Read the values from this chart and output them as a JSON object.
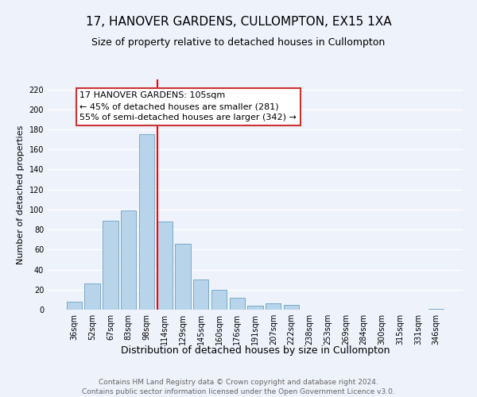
{
  "title": "17, HANOVER GARDENS, CULLOMPTON, EX15 1XA",
  "subtitle": "Size of property relative to detached houses in Cullompton",
  "xlabel": "Distribution of detached houses by size in Cullompton",
  "ylabel": "Number of detached properties",
  "footer_line1": "Contains HM Land Registry data © Crown copyright and database right 2024.",
  "footer_line2": "Contains public sector information licensed under the Open Government Licence v3.0.",
  "bar_labels": [
    "36sqm",
    "52sqm",
    "67sqm",
    "83sqm",
    "98sqm",
    "114sqm",
    "129sqm",
    "145sqm",
    "160sqm",
    "176sqm",
    "191sqm",
    "207sqm",
    "222sqm",
    "238sqm",
    "253sqm",
    "269sqm",
    "284sqm",
    "300sqm",
    "315sqm",
    "331sqm",
    "346sqm"
  ],
  "bar_values": [
    8,
    26,
    89,
    99,
    175,
    88,
    66,
    30,
    20,
    12,
    4,
    6,
    5,
    0,
    0,
    0,
    0,
    0,
    0,
    0,
    1
  ],
  "bar_color": "#b8d4ea",
  "bar_edge_color": "#7aaac8",
  "ylim": [
    0,
    230
  ],
  "yticks": [
    0,
    20,
    40,
    60,
    80,
    100,
    120,
    140,
    160,
    180,
    200,
    220
  ],
  "red_line_index": 5,
  "annotation_title": "17 HANOVER GARDENS: 105sqm",
  "annotation_line1": "← 45% of detached houses are smaller (281)",
  "annotation_line2": "55% of semi-detached houses are larger (342) →",
  "background_color": "#eef2fb",
  "grid_color": "#ffffff",
  "title_fontsize": 11,
  "xlabel_fontsize": 9,
  "ylabel_fontsize": 8,
  "tick_fontsize": 7,
  "annotation_fontsize": 8,
  "footer_fontsize": 6.5
}
